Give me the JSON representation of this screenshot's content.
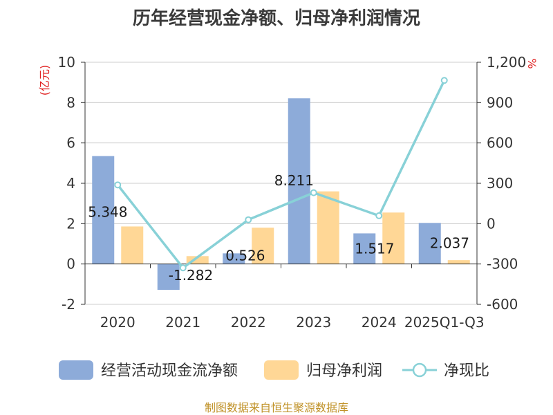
{
  "title": "历年经营现金净额、归母净利润情况",
  "source_note": "制图数据来自恒生聚源数据库",
  "left_unit": "(亿元)",
  "right_unit": "%",
  "colors": {
    "bar1": "#8dabd9",
    "bar2": "#ffd796",
    "line": "#88d1d7",
    "axis": "#333333",
    "grid": "#cccccc"
  },
  "chart_data": {
    "type": "bar",
    "categories": [
      "2020",
      "2021",
      "2022",
      "2023",
      "2024",
      "2025Q1-Q3"
    ],
    "series": [
      {
        "name": "经营活动现金流净额",
        "type": "bar",
        "axis": "left",
        "values": [
          5.348,
          -1.282,
          0.526,
          8.211,
          1.517,
          2.037
        ],
        "labels": [
          "5.348",
          "-1.282",
          "0.526",
          "8.211",
          "1.517",
          "2.037"
        ]
      },
      {
        "name": "归母净利润",
        "type": "bar",
        "axis": "left",
        "values": [
          1.86,
          0.39,
          1.8,
          3.6,
          2.55,
          0.19
        ]
      },
      {
        "name": "净现比",
        "type": "line",
        "axis": "right",
        "values": [
          288,
          -329,
          29,
          230,
          59,
          1065
        ]
      }
    ],
    "y_left": {
      "min": -2,
      "max": 10,
      "ticks": [
        "-2",
        "0",
        "2",
        "4",
        "6",
        "8",
        "10"
      ]
    },
    "y_right": {
      "min": -600,
      "max": 1200,
      "ticks": [
        "-600",
        "-300",
        "0",
        "300",
        "600",
        "900",
        "1,200"
      ]
    },
    "grid": true,
    "legend_position": "bottom"
  }
}
